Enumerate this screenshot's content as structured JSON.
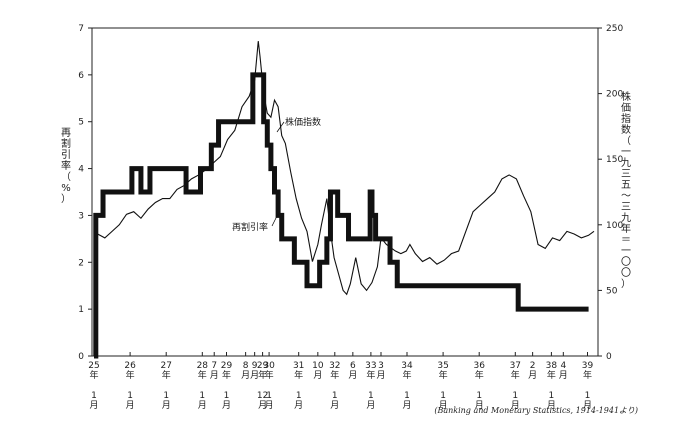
{
  "chart_data": {
    "type": "line",
    "title": "",
    "left_axis_label": "再割引率（%）",
    "right_axis_label": "株価指数（一九三五〜三九年＝一〇〇）",
    "ylim_left": [
      0,
      7
    ],
    "ylim_right": [
      0,
      250
    ],
    "left_ticks": [
      "0",
      "1",
      "2",
      "3",
      "4",
      "5",
      "6",
      "7"
    ],
    "right_ticks": [
      "0",
      "50",
      "100",
      "150",
      "200",
      "250"
    ],
    "x_ticks": [
      {
        "xi": 0,
        "label": "25\n年\n\n1\n月"
      },
      {
        "xi": 1,
        "label": "26\n年\n\n1\n月"
      },
      {
        "xi": 2,
        "label": "27\n年\n\n1\n月"
      },
      {
        "xi": 3,
        "label": "28\n年\n\n1\n月"
      },
      {
        "xi": 3.33,
        "label": "7\n月"
      },
      {
        "xi": 3.67,
        "label": "29\n年\n\n1\n月"
      },
      {
        "xi": 4.2,
        "label": "8\n月"
      },
      {
        "xi": 4.45,
        "label": "9\n月"
      },
      {
        "xi": 4.67,
        "label": "29\n年\n\n12\n月"
      },
      {
        "xi": 4.85,
        "label": "30\n年\n\n1\n月"
      },
      {
        "xi": 5.67,
        "label": "31\n年\n\n1\n月"
      },
      {
        "xi": 6.2,
        "label": "10\n月"
      },
      {
        "xi": 6.67,
        "label": "32\n年\n\n1\n月"
      },
      {
        "xi": 7.17,
        "label": "6\n月"
      },
      {
        "xi": 7.67,
        "label": "33\n年\n\n1\n月"
      },
      {
        "xi": 7.95,
        "label": "3\n月"
      },
      {
        "xi": 8.67,
        "label": "34\n年\n\n1\n月"
      },
      {
        "xi": 9.67,
        "label": "35\n年\n\n1\n月"
      },
      {
        "xi": 10.67,
        "label": "36\n年\n\n1\n月"
      },
      {
        "xi": 11.67,
        "label": "37\n年\n\n1\n月"
      },
      {
        "xi": 12.15,
        "label": "2\n月"
      },
      {
        "xi": 12.67,
        "label": "38\n年\n\n1\n月"
      },
      {
        "xi": 13.0,
        "label": "4\n月"
      },
      {
        "xi": 13.67,
        "label": "39\n年\n\n1\n月"
      }
    ],
    "series": [
      {
        "name": "再割引率",
        "axis": "left",
        "style": "thick-step",
        "points": [
          [
            0,
            0
          ],
          [
            0.05,
            3
          ],
          [
            0.25,
            3.5
          ],
          [
            1.0,
            3.5
          ],
          [
            1.05,
            4
          ],
          [
            1.3,
            3.5
          ],
          [
            1.55,
            4
          ],
          [
            2.5,
            4
          ],
          [
            2.55,
            3.5
          ],
          [
            2.9,
            3.5
          ],
          [
            2.95,
            4
          ],
          [
            3.2,
            4
          ],
          [
            3.25,
            4.5
          ],
          [
            3.4,
            4.5
          ],
          [
            3.45,
            5
          ],
          [
            4.35,
            5
          ],
          [
            4.4,
            6
          ],
          [
            4.65,
            6
          ],
          [
            4.7,
            5
          ],
          [
            4.8,
            4.5
          ],
          [
            4.9,
            4
          ],
          [
            5.0,
            3.5
          ],
          [
            5.1,
            3
          ],
          [
            5.2,
            2.5
          ],
          [
            5.5,
            2.5
          ],
          [
            5.55,
            2
          ],
          [
            5.85,
            2
          ],
          [
            5.9,
            1.5
          ],
          [
            6.2,
            1.5
          ],
          [
            6.25,
            2
          ],
          [
            6.45,
            2.5
          ],
          [
            6.55,
            3.5
          ],
          [
            6.7,
            3.5
          ],
          [
            6.75,
            3
          ],
          [
            7.0,
            3
          ],
          [
            7.05,
            2.5
          ],
          [
            7.6,
            2.5
          ],
          [
            7.65,
            3.5
          ],
          [
            7.7,
            3
          ],
          [
            7.8,
            2.5
          ],
          [
            8.15,
            2.5
          ],
          [
            8.2,
            2
          ],
          [
            8.35,
            2
          ],
          [
            8.4,
            1.5
          ],
          [
            11.7,
            1.5
          ],
          [
            11.75,
            1
          ],
          [
            13.7,
            1
          ]
        ]
      },
      {
        "name": "株価指数",
        "axis": "right",
        "style": "line",
        "points": [
          [
            0.1,
            93
          ],
          [
            0.3,
            90
          ],
          [
            0.5,
            95
          ],
          [
            0.7,
            100
          ],
          [
            0.9,
            108
          ],
          [
            1.1,
            110
          ],
          [
            1.3,
            105
          ],
          [
            1.5,
            112
          ],
          [
            1.7,
            117
          ],
          [
            1.9,
            120
          ],
          [
            2.1,
            120
          ],
          [
            2.3,
            127
          ],
          [
            2.5,
            130
          ],
          [
            2.7,
            135
          ],
          [
            2.9,
            138
          ],
          [
            3.1,
            142
          ],
          [
            3.3,
            147
          ],
          [
            3.5,
            152
          ],
          [
            3.7,
            165
          ],
          [
            3.9,
            172
          ],
          [
            4.1,
            190
          ],
          [
            4.3,
            198
          ],
          [
            4.45,
            210
          ],
          [
            4.55,
            240
          ],
          [
            4.6,
            228
          ],
          [
            4.7,
            200
          ],
          [
            4.8,
            185
          ],
          [
            4.9,
            182
          ],
          [
            5.0,
            195
          ],
          [
            5.1,
            190
          ],
          [
            5.2,
            168
          ],
          [
            5.3,
            162
          ],
          [
            5.45,
            140
          ],
          [
            5.6,
            120
          ],
          [
            5.75,
            105
          ],
          [
            5.9,
            95
          ],
          [
            6.05,
            72
          ],
          [
            6.2,
            85
          ],
          [
            6.3,
            100
          ],
          [
            6.45,
            120
          ],
          [
            6.55,
            95
          ],
          [
            6.65,
            75
          ],
          [
            6.8,
            60
          ],
          [
            6.9,
            50
          ],
          [
            7.0,
            47
          ],
          [
            7.1,
            55
          ],
          [
            7.25,
            75
          ],
          [
            7.4,
            55
          ],
          [
            7.55,
            50
          ],
          [
            7.7,
            56
          ],
          [
            7.85,
            68
          ],
          [
            7.95,
            90
          ],
          [
            8.1,
            85
          ],
          [
            8.25,
            82
          ],
          [
            8.35,
            80
          ],
          [
            8.5,
            78
          ],
          [
            8.65,
            80
          ],
          [
            8.75,
            85
          ],
          [
            8.9,
            78
          ],
          [
            9.1,
            72
          ],
          [
            9.3,
            75
          ],
          [
            9.5,
            70
          ],
          [
            9.7,
            73
          ],
          [
            9.9,
            78
          ],
          [
            10.1,
            80
          ],
          [
            10.3,
            95
          ],
          [
            10.5,
            110
          ],
          [
            10.7,
            115
          ],
          [
            10.9,
            120
          ],
          [
            11.1,
            125
          ],
          [
            11.3,
            135
          ],
          [
            11.5,
            138
          ],
          [
            11.7,
            135
          ],
          [
            11.9,
            122
          ],
          [
            12.1,
            110
          ],
          [
            12.3,
            85
          ],
          [
            12.5,
            82
          ],
          [
            12.7,
            90
          ],
          [
            12.9,
            88
          ],
          [
            13.1,
            95
          ],
          [
            13.3,
            93
          ],
          [
            13.5,
            90
          ],
          [
            13.7,
            92
          ],
          [
            13.85,
            95
          ]
        ]
      }
    ],
    "annotations": [
      "株価指数",
      "再割引率"
    ],
    "source": "(Banking and Monetary Statistics, 1914-1941より)"
  }
}
